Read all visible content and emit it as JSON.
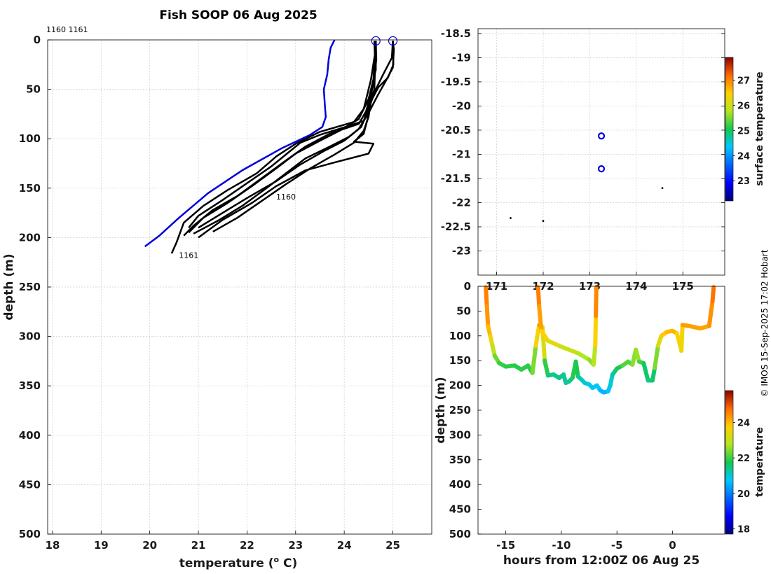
{
  "title": "Fish SOOP 06 Aug 2025",
  "credit": "© IMOS 15-Sep-2025 17:02 Hobart",
  "chart_data": [
    {
      "type": "line",
      "xlabel": "temperature (° C)",
      "xlabel_parts": {
        "pre": "temperature (",
        "sup": "o",
        "post": " C)"
      },
      "ylabel": "depth (m)",
      "xlim": [
        17.9,
        25.8
      ],
      "ylim": [
        500,
        0
      ],
      "xticks": [
        "18",
        "19",
        "20",
        "21",
        "22",
        "23",
        "24",
        "25"
      ],
      "yticks": [
        "0",
        "50",
        "100",
        "150",
        "200",
        "250",
        "300",
        "350",
        "400",
        "450",
        "500"
      ],
      "grid": true,
      "top_labels": "1160 1161",
      "annotations": [
        {
          "text": "1160",
          "x": 22.6,
          "y": 158
        },
        {
          "text": "1161",
          "x": 20.6,
          "y": 217
        }
      ],
      "markers": [
        {
          "x": 24.65,
          "y": 1,
          "color": "#0000cc"
        },
        {
          "x": 25.0,
          "y": 1,
          "color": "#0000cc"
        }
      ],
      "series": [
        {
          "color": "#0000dd",
          "points": [
            [
              23.8,
              0
            ],
            [
              23.72,
              8
            ],
            [
              23.68,
              20
            ],
            [
              23.65,
              35
            ],
            [
              23.58,
              50
            ],
            [
              23.6,
              65
            ],
            [
              23.62,
              78
            ],
            [
              23.55,
              88
            ],
            [
              23.3,
              96
            ],
            [
              22.7,
              110
            ],
            [
              21.9,
              132
            ],
            [
              21.2,
              155
            ],
            [
              20.6,
              180
            ],
            [
              20.2,
              198
            ],
            [
              19.9,
              209
            ]
          ]
        },
        {
          "color": "#000000",
          "points": [
            [
              24.62,
              1
            ],
            [
              24.63,
              15
            ],
            [
              24.55,
              40
            ],
            [
              24.4,
              70
            ],
            [
              24.2,
              83
            ],
            [
              23.5,
              93
            ],
            [
              23.0,
              105
            ],
            [
              22.6,
              118
            ],
            [
              22.2,
              135
            ],
            [
              21.6,
              152
            ],
            [
              21.1,
              168
            ],
            [
              20.7,
              185
            ],
            [
              20.55,
              205
            ],
            [
              20.45,
              216
            ]
          ]
        },
        {
          "color": "#000000",
          "points": [
            [
              24.65,
              1
            ],
            [
              24.66,
              20
            ],
            [
              24.6,
              45
            ],
            [
              24.45,
              72
            ],
            [
              24.3,
              85
            ],
            [
              23.7,
              95
            ],
            [
              23.2,
              108
            ],
            [
              22.8,
              122
            ],
            [
              22.3,
              140
            ],
            [
              21.8,
              158
            ],
            [
              21.3,
              172
            ],
            [
              20.9,
              188
            ],
            [
              20.7,
              198
            ]
          ]
        },
        {
          "color": "#000000",
          "points": [
            [
              24.64,
              1
            ],
            [
              24.65,
              30
            ],
            [
              24.5,
              60
            ],
            [
              24.3,
              80
            ],
            [
              23.9,
              92
            ],
            [
              23.5,
              102
            ],
            [
              23.0,
              115
            ],
            [
              22.6,
              130
            ],
            [
              22.1,
              148
            ],
            [
              21.6,
              165
            ],
            [
              21.1,
              180
            ],
            [
              20.8,
              195
            ]
          ]
        },
        {
          "color": "#000000",
          "points": [
            [
              25.0,
              1
            ],
            [
              25.02,
              10
            ],
            [
              25.0,
              28
            ],
            [
              24.85,
              42
            ],
            [
              24.7,
              55
            ],
            [
              24.5,
              74
            ],
            [
              24.3,
              90
            ],
            [
              24.0,
              102
            ],
            [
              23.6,
              112
            ],
            [
              23.1,
              126
            ],
            [
              22.6,
              143
            ],
            [
              22.0,
              160
            ],
            [
              21.5,
              175
            ],
            [
              21.0,
              190
            ]
          ]
        },
        {
          "color": "#000000",
          "points": [
            [
              25.0,
              1
            ],
            [
              25.01,
              25
            ],
            [
              24.9,
              38
            ],
            [
              24.7,
              48
            ],
            [
              24.55,
              62
            ],
            [
              24.5,
              78
            ],
            [
              24.4,
              92
            ],
            [
              24.2,
              104
            ],
            [
              23.8,
              116
            ],
            [
              23.3,
              130
            ],
            [
              22.8,
              146
            ],
            [
              22.3,
              163
            ],
            [
              21.8,
              180
            ],
            [
              21.3,
              194
            ]
          ]
        },
        {
          "color": "#000000",
          "points": [
            [
              25.0,
              1
            ],
            [
              24.98,
              18
            ],
            [
              24.8,
              35
            ],
            [
              24.65,
              50
            ],
            [
              24.5,
              70
            ],
            [
              24.35,
              88
            ],
            [
              24.1,
              98
            ],
            [
              23.7,
              108
            ],
            [
              23.2,
              120
            ],
            [
              22.8,
              135
            ],
            [
              22.4,
              150
            ],
            [
              21.9,
              168
            ],
            [
              21.4,
              183
            ],
            [
              20.9,
              196
            ]
          ]
        },
        {
          "color": "#000000",
          "points": [
            [
              24.65,
              2
            ],
            [
              24.6,
              40
            ],
            [
              24.5,
              76
            ],
            [
              24.4,
              95
            ],
            [
              24.2,
              103
            ],
            [
              24.6,
              105
            ],
            [
              24.5,
              115
            ],
            [
              23.8,
              124
            ],
            [
              23.2,
              132
            ],
            [
              22.6,
              148
            ],
            [
              22.1,
              165
            ],
            [
              21.5,
              182
            ],
            [
              21.0,
              200
            ]
          ]
        },
        {
          "color": "#000000",
          "points": [
            [
              24.65,
              2
            ],
            [
              24.62,
              50
            ],
            [
              24.4,
              82
            ],
            [
              23.9,
              90
            ],
            [
              23.5,
              96
            ],
            [
              23.1,
              104
            ],
            [
              22.9,
              112
            ],
            [
              22.5,
              128
            ],
            [
              22.0,
              145
            ],
            [
              21.5,
              162
            ],
            [
              21.0,
              178
            ],
            [
              20.8,
              190
            ]
          ]
        }
      ]
    },
    {
      "type": "scatter",
      "ylim": [
        -23.5,
        -18.4
      ],
      "yticks": [
        "-18.5",
        "-19",
        "-19.5",
        "-20",
        "-20.5",
        "-21",
        "-21.5",
        "-22",
        "-22.5",
        "-23"
      ],
      "xlim": [
        170.6,
        175.9
      ],
      "xticks": [
        "171",
        "172",
        "173",
        "174",
        "175"
      ],
      "grid": true,
      "colorbar": {
        "label": "surface temperature",
        "ticks": [
          "23",
          "24",
          "25",
          "26",
          "27"
        ],
        "range": [
          22.2,
          27.9
        ]
      },
      "points": [
        {
          "x": 173.25,
          "y": -20.62,
          "style": "ring",
          "color": "#0000dd"
        },
        {
          "x": 173.25,
          "y": -21.3,
          "style": "ring",
          "color": "#0000dd"
        },
        {
          "x": 174.56,
          "y": -21.7,
          "style": "dot",
          "color": "#000000"
        },
        {
          "x": 171.3,
          "y": -22.32,
          "style": "dot",
          "color": "#000000"
        },
        {
          "x": 172.0,
          "y": -22.38,
          "style": "dot",
          "color": "#000000"
        }
      ]
    },
    {
      "type": "scatter",
      "xlabel": "hours from 12:00Z 06 Aug 25",
      "ylabel": "depth (m)",
      "xlim": [
        -17.5,
        4.7
      ],
      "ylim": [
        500,
        0
      ],
      "xticks": [
        "-15",
        "-10",
        "-5",
        "0"
      ],
      "yticks": [
        "0",
        "50",
        "100",
        "150",
        "200",
        "250",
        "300",
        "350",
        "400",
        "450",
        "500"
      ],
      "grid": false,
      "colorbar": {
        "label": "temperature",
        "ticks": [
          "18",
          "20",
          "22",
          "24"
        ],
        "range": [
          17.7,
          25.8
        ]
      },
      "points": [
        [
          -16.8,
          2,
          24.6
        ],
        [
          -16.7,
          40,
          24.5
        ],
        [
          -16.6,
          80,
          24.2
        ],
        [
          -16.4,
          100,
          23.8
        ],
        [
          -16.2,
          120,
          23.2
        ],
        [
          -16.0,
          140,
          22.6
        ],
        [
          -15.6,
          155,
          22.0
        ],
        [
          -15.0,
          162,
          21.9
        ],
        [
          -14.2,
          160,
          21.9
        ],
        [
          -13.6,
          168,
          21.8
        ],
        [
          -13.0,
          160,
          22.0
        ],
        [
          -12.6,
          175,
          21.8
        ],
        [
          -12.3,
          120,
          23.0
        ],
        [
          -12.0,
          78,
          24.3
        ],
        [
          -11.7,
          82,
          24.2
        ],
        [
          -11.5,
          150,
          22.3
        ],
        [
          -11.2,
          180,
          21.5
        ],
        [
          -10.7,
          178,
          21.4
        ],
        [
          -10.2,
          185,
          21.4
        ],
        [
          -9.8,
          178,
          21.4
        ],
        [
          -9.6,
          195,
          21.3
        ],
        [
          -9.3,
          192,
          21.3
        ],
        [
          -9.0,
          185,
          21.5
        ],
        [
          -8.7,
          152,
          22.2
        ],
        [
          -8.5,
          182,
          21.4
        ],
        [
          -8.2,
          188,
          21.3
        ],
        [
          -7.9,
          195,
          21.0
        ],
        [
          -7.5,
          198,
          20.9
        ],
        [
          -7.2,
          205,
          20.8
        ],
        [
          -6.8,
          200,
          20.9
        ],
        [
          -6.5,
          210,
          20.6
        ],
        [
          -6.2,
          214,
          20.5
        ],
        [
          -5.8,
          212,
          20.6
        ],
        [
          -5.6,
          200,
          20.8
        ],
        [
          -5.4,
          178,
          21.2
        ],
        [
          -5.0,
          166,
          21.6
        ],
        [
          -4.5,
          160,
          22.0
        ],
        [
          -4.0,
          152,
          22.3
        ],
        [
          -3.6,
          158,
          22.0
        ],
        [
          -3.3,
          128,
          23.0
        ],
        [
          -3.0,
          152,
          22.2
        ],
        [
          -2.6,
          155,
          22.0
        ],
        [
          -2.2,
          190,
          21.3
        ],
        [
          -1.8,
          190,
          21.4
        ],
        [
          -1.6,
          165,
          21.8
        ],
        [
          -1.3,
          120,
          23.0
        ],
        [
          -1.0,
          100,
          23.7
        ],
        [
          -0.5,
          92,
          24.0
        ],
        [
          0.0,
          90,
          24.0
        ],
        [
          0.4,
          95,
          24.1
        ],
        [
          0.7,
          120,
          23.3
        ],
        [
          0.8,
          130,
          22.9
        ],
        [
          0.9,
          78,
          24.3
        ],
        [
          1.5,
          80,
          24.3
        ],
        [
          2.5,
          85,
          24.2
        ],
        [
          3.3,
          80,
          24.2
        ],
        [
          3.6,
          30,
          24.6
        ],
        [
          3.7,
          2,
          24.8
        ],
        [
          -12.1,
          2,
          24.7
        ],
        [
          -12.0,
          40,
          24.5
        ],
        [
          -11.8,
          90,
          24.0
        ],
        [
          -11.2,
          110,
          23.5
        ],
        [
          -10.0,
          122,
          23.2
        ],
        [
          -8.5,
          135,
          22.9
        ],
        [
          -7.5,
          148,
          22.6
        ],
        [
          -7.1,
          158,
          22.4
        ],
        [
          -6.95,
          120,
          23.2
        ],
        [
          -6.9,
          60,
          24.2
        ],
        [
          -6.85,
          2,
          24.8
        ]
      ]
    }
  ]
}
